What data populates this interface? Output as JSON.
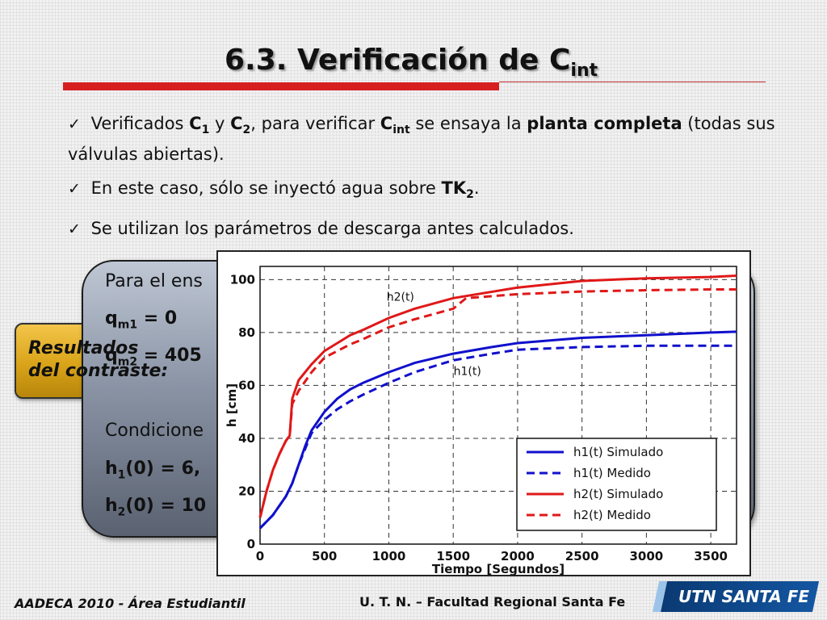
{
  "slide": {
    "title_main": "6.3. Verificación de C",
    "title_sub": "int",
    "bullets": [
      {
        "check": "✓",
        "parts": [
          {
            "t": " Verificados ",
            "b": false,
            "sub": false
          },
          {
            "t": "C",
            "b": true,
            "sub": false
          },
          {
            "t": "1",
            "b": true,
            "sub": true
          },
          {
            "t": " y ",
            "b": false,
            "sub": false
          },
          {
            "t": "C",
            "b": true,
            "sub": false
          },
          {
            "t": "2",
            "b": true,
            "sub": true
          },
          {
            "t": ", para verificar ",
            "b": false,
            "sub": false
          },
          {
            "t": "C",
            "b": true,
            "sub": false
          },
          {
            "t": "int",
            "b": true,
            "sub": true
          },
          {
            "t": " se ensaya la ",
            "b": false,
            "sub": false
          },
          {
            "t": "planta completa",
            "b": true,
            "sub": false
          },
          {
            "t": " (todas sus válvulas abiertas).",
            "b": false,
            "sub": false
          }
        ]
      },
      {
        "check": "✓",
        "parts": [
          {
            "t": " En este caso, sólo se inyectó agua sobre ",
            "b": false,
            "sub": false
          },
          {
            "t": "TK",
            "b": true,
            "sub": false
          },
          {
            "t": "2",
            "b": true,
            "sub": true
          },
          {
            "t": ".",
            "b": false,
            "sub": false
          }
        ]
      },
      {
        "check": "✓",
        "parts": [
          {
            "t": " Se utilizan los parámetros de descarga antes calculados.",
            "b": false,
            "sub": false
          }
        ]
      }
    ],
    "panel": {
      "line1": "Para el ens",
      "qm1": "q",
      "qm1_sub": "m1",
      "qm1_val": " = 0",
      "qm2": "q",
      "qm2_sub": "m2",
      "qm2_val": " = 405",
      "cond": "Condicione",
      "h1": "h",
      "h1_sub": "1",
      "h1_val": "(0) = 6,",
      "h2": "h",
      "h2_sub": "2",
      "h2_val": "(0) = 10"
    },
    "tag_text": "Resultados\ndel contraste:",
    "footer_left": "AADECA 2010 - Área Estudiantil",
    "footer_right": "U. T. N. – Facultad Regional Santa Fe",
    "logo_text": "UTN SANTA FE"
  },
  "chart_data": {
    "type": "line",
    "xlabel": "Tiempo [Segundos]",
    "ylabel": "h [cm]",
    "xlim": [
      0,
      3700
    ],
    "ylim": [
      0,
      105
    ],
    "xticks": [
      0,
      500,
      1000,
      1500,
      2000,
      2500,
      3000,
      3500
    ],
    "yticks": [
      0,
      20,
      40,
      60,
      80,
      100
    ],
    "grid": true,
    "legend_position": "bottom-right",
    "annotations": [
      {
        "text": "h2(t)",
        "x": 1090,
        "y": 92
      },
      {
        "text": "h1(t)",
        "x": 1610,
        "y": 64
      }
    ],
    "series": [
      {
        "name": "h1(t) Simulado",
        "color": "#1010cc",
        "dash": false,
        "x": [
          0,
          100,
          200,
          250,
          300,
          350,
          400,
          500,
          600,
          700,
          800,
          1000,
          1200,
          1500,
          1800,
          2000,
          2500,
          3000,
          3500,
          3700
        ],
        "y": [
          6,
          11,
          18,
          23,
          30,
          37,
          43,
          50,
          55,
          58.5,
          61,
          65,
          68.5,
          72,
          74.5,
          76,
          78,
          79,
          80,
          80.3
        ]
      },
      {
        "name": "h1(t) Medido",
        "color": "#1010cc",
        "dash": true,
        "x": [
          0,
          100,
          200,
          250,
          300,
          350,
          400,
          500,
          600,
          700,
          800,
          1000,
          1200,
          1500,
          1800,
          2000,
          2500,
          3000,
          3500,
          3700
        ],
        "y": [
          6,
          11,
          18,
          23,
          30,
          36,
          42,
          47,
          51,
          54,
          56.5,
          61,
          65,
          69.5,
          72,
          73.5,
          74.5,
          75,
          75,
          75
        ]
      },
      {
        "name": "h2(t) Simulado",
        "color": "#e01818",
        "dash": false,
        "x": [
          0,
          50,
          100,
          150,
          200,
          230,
          250,
          300,
          400,
          500,
          600,
          700,
          800,
          1000,
          1200,
          1500,
          2000,
          2500,
          3000,
          3500,
          3700
        ],
        "y": [
          10,
          20,
          28,
          34,
          39,
          41,
          55,
          62,
          68,
          73,
          76,
          79,
          81,
          85.5,
          89,
          93,
          97,
          99.5,
          100.5,
          101,
          101.5
        ]
      },
      {
        "name": "h2(t) Medido",
        "color": "#e01818",
        "dash": true,
        "x": [
          0,
          50,
          100,
          150,
          200,
          230,
          250,
          300,
          400,
          500,
          600,
          700,
          800,
          1000,
          1200,
          1500,
          1600,
          2000,
          2500,
          3000,
          3500,
          3700
        ],
        "y": [
          10,
          20,
          28,
          34,
          39,
          41,
          53,
          58,
          65,
          70.5,
          73,
          75.5,
          77.5,
          82,
          85,
          89,
          93,
          94.5,
          95.5,
          96,
          96.3,
          96.3
        ]
      }
    ]
  }
}
